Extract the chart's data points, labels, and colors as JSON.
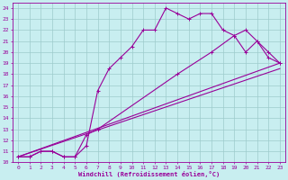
{
  "xlabel": "Windchill (Refroidissement éolien,°C)",
  "xlim": [
    -0.5,
    23.5
  ],
  "ylim": [
    10,
    24.5
  ],
  "xticks": [
    0,
    1,
    2,
    3,
    4,
    5,
    6,
    7,
    8,
    9,
    10,
    11,
    12,
    13,
    14,
    15,
    16,
    17,
    18,
    19,
    20,
    21,
    22,
    23
  ],
  "yticks": [
    10,
    11,
    12,
    13,
    14,
    15,
    16,
    17,
    18,
    19,
    20,
    21,
    22,
    23,
    24
  ],
  "bg_color": "#c8eef0",
  "line_color": "#990099",
  "grid_color": "#9dcbcc",
  "line1_x": [
    0,
    1,
    2,
    3,
    4,
    5,
    6,
    7,
    8,
    9,
    10,
    11,
    12,
    13,
    14,
    15,
    16,
    17,
    18,
    19,
    20,
    21,
    22,
    23
  ],
  "line1_y": [
    10.5,
    10.5,
    11.0,
    11.0,
    10.5,
    10.5,
    11.5,
    16.5,
    18.5,
    19.5,
    20.5,
    22.0,
    22.0,
    24.0,
    23.5,
    23.0,
    23.5,
    23.5,
    22.0,
    21.5,
    20.0,
    21.0,
    19.5,
    19.0
  ],
  "line2_x": [
    0,
    1,
    2,
    3,
    4,
    5,
    6,
    7,
    14,
    17,
    19,
    20,
    21,
    22,
    23
  ],
  "line2_y": [
    10.5,
    10.5,
    11.0,
    11.0,
    10.5,
    10.5,
    12.5,
    13.0,
    18.0,
    20.0,
    21.5,
    22.0,
    21.0,
    20.0,
    19.0
  ],
  "line3_x": [
    0,
    23
  ],
  "line3_y": [
    10.5,
    19.0
  ],
  "line4_x": [
    0,
    23
  ],
  "line4_y": [
    10.5,
    18.5
  ]
}
